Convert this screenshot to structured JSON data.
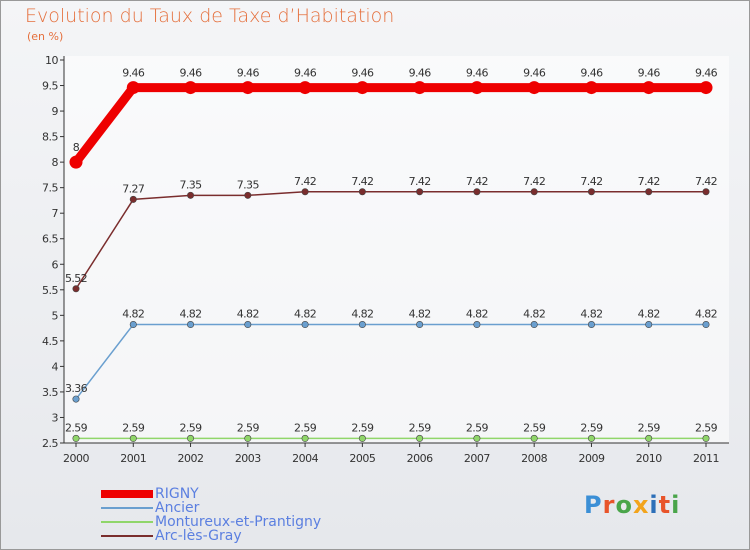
{
  "header": {
    "title": "Evolution du Taux de Taxe d’Habitation",
    "unit": "(en %)"
  },
  "logo": {
    "text": "Proxiti",
    "colors": [
      "#3b8fd6",
      "#e8542a",
      "#4aa54a",
      "#f2a41c",
      "#2c6fb8",
      "#e8542a",
      "#4aa54a"
    ]
  },
  "chart_data": {
    "type": "line",
    "title": "Evolution du Taux de Taxe d’Habitation",
    "ylabel": "(en %)",
    "xlabel": "",
    "categories": [
      "2000",
      "2001",
      "2002",
      "2003",
      "2004",
      "2005",
      "2006",
      "2007",
      "2008",
      "2009",
      "2010",
      "2011"
    ],
    "ylim": [
      2.5,
      10
    ],
    "yticks": [
      2.5,
      3,
      3.5,
      4,
      4.5,
      5,
      5.5,
      6,
      6.5,
      7,
      7.5,
      8,
      8.5,
      9,
      9.5,
      10
    ],
    "grid": false,
    "legend_position": "bottom-left",
    "series": [
      {
        "name": "RIGNY",
        "color": "#ee0000",
        "emphasis": true,
        "values": [
          8,
          9.46,
          9.46,
          9.46,
          9.46,
          9.46,
          9.46,
          9.46,
          9.46,
          9.46,
          9.46,
          9.46
        ],
        "labels": [
          "8",
          "9.46",
          "9.46",
          "9.46",
          "9.46",
          "9.46",
          "9.46",
          "9.46",
          "9.46",
          "9.46",
          "9.46",
          "9.46"
        ]
      },
      {
        "name": "Arc-lès-Gray",
        "color": "#7a2d2d",
        "emphasis": false,
        "values": [
          5.52,
          7.27,
          7.35,
          7.35,
          7.42,
          7.42,
          7.42,
          7.42,
          7.42,
          7.42,
          7.42,
          7.42
        ],
        "labels": [
          "5.52",
          "7.27",
          "7.35",
          "7.35",
          "7.42",
          "7.42",
          "7.42",
          "7.42",
          "7.42",
          "7.42",
          "7.42",
          "7.42"
        ]
      },
      {
        "name": "Ancier",
        "color": "#6a9fcf",
        "emphasis": false,
        "values": [
          3.36,
          4.82,
          4.82,
          4.82,
          4.82,
          4.82,
          4.82,
          4.82,
          4.82,
          4.82,
          4.82,
          4.82
        ],
        "labels": [
          "3.36",
          "4.82",
          "4.82",
          "4.82",
          "4.82",
          "4.82",
          "4.82",
          "4.82",
          "4.82",
          "4.82",
          "4.82",
          "4.82"
        ]
      },
      {
        "name": "Montureux-et-Prantigny",
        "color": "#90d66a",
        "emphasis": false,
        "values": [
          2.59,
          2.59,
          2.59,
          2.59,
          2.59,
          2.59,
          2.59,
          2.59,
          2.59,
          2.59,
          2.59,
          2.59
        ],
        "labels": [
          "2.59",
          "2.59",
          "2.59",
          "2.59",
          "2.59",
          "2.59",
          "2.59",
          "2.59",
          "2.59",
          "2.59",
          "2.59",
          "2.59"
        ]
      }
    ],
    "legend": [
      {
        "name": "RIGNY",
        "color": "#ee0000",
        "emphasis": true
      },
      {
        "name": "Ancier",
        "color": "#6a9fcf",
        "emphasis": false
      },
      {
        "name": "Montureux-et-Prantigny",
        "color": "#90d66a",
        "emphasis": false
      },
      {
        "name": "Arc-lès-Gray",
        "color": "#7a2d2d",
        "emphasis": false
      }
    ]
  }
}
